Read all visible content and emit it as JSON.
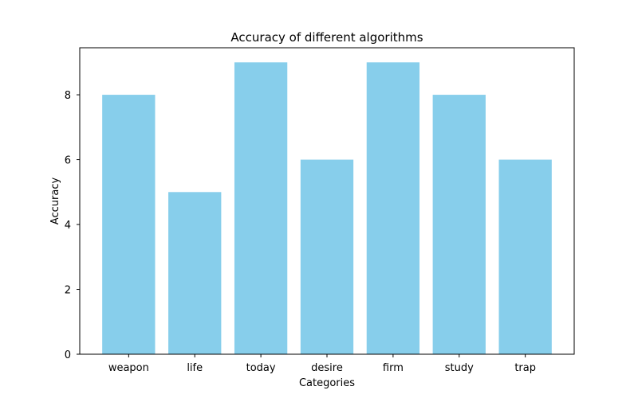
{
  "chart_data": {
    "type": "bar",
    "title": "Accuracy of different algorithms",
    "xlabel": "Categories",
    "ylabel": "Accuracy",
    "categories": [
      "weapon",
      "life",
      "today",
      "desire",
      "firm",
      "study",
      "trap"
    ],
    "values": [
      8,
      5,
      9,
      6,
      9,
      8,
      6
    ],
    "ylim": [
      0,
      9.45
    ],
    "yticks": [
      0,
      2,
      4,
      6,
      8
    ],
    "bar_color": "#87CEEB",
    "grid": false,
    "legend": "none"
  }
}
